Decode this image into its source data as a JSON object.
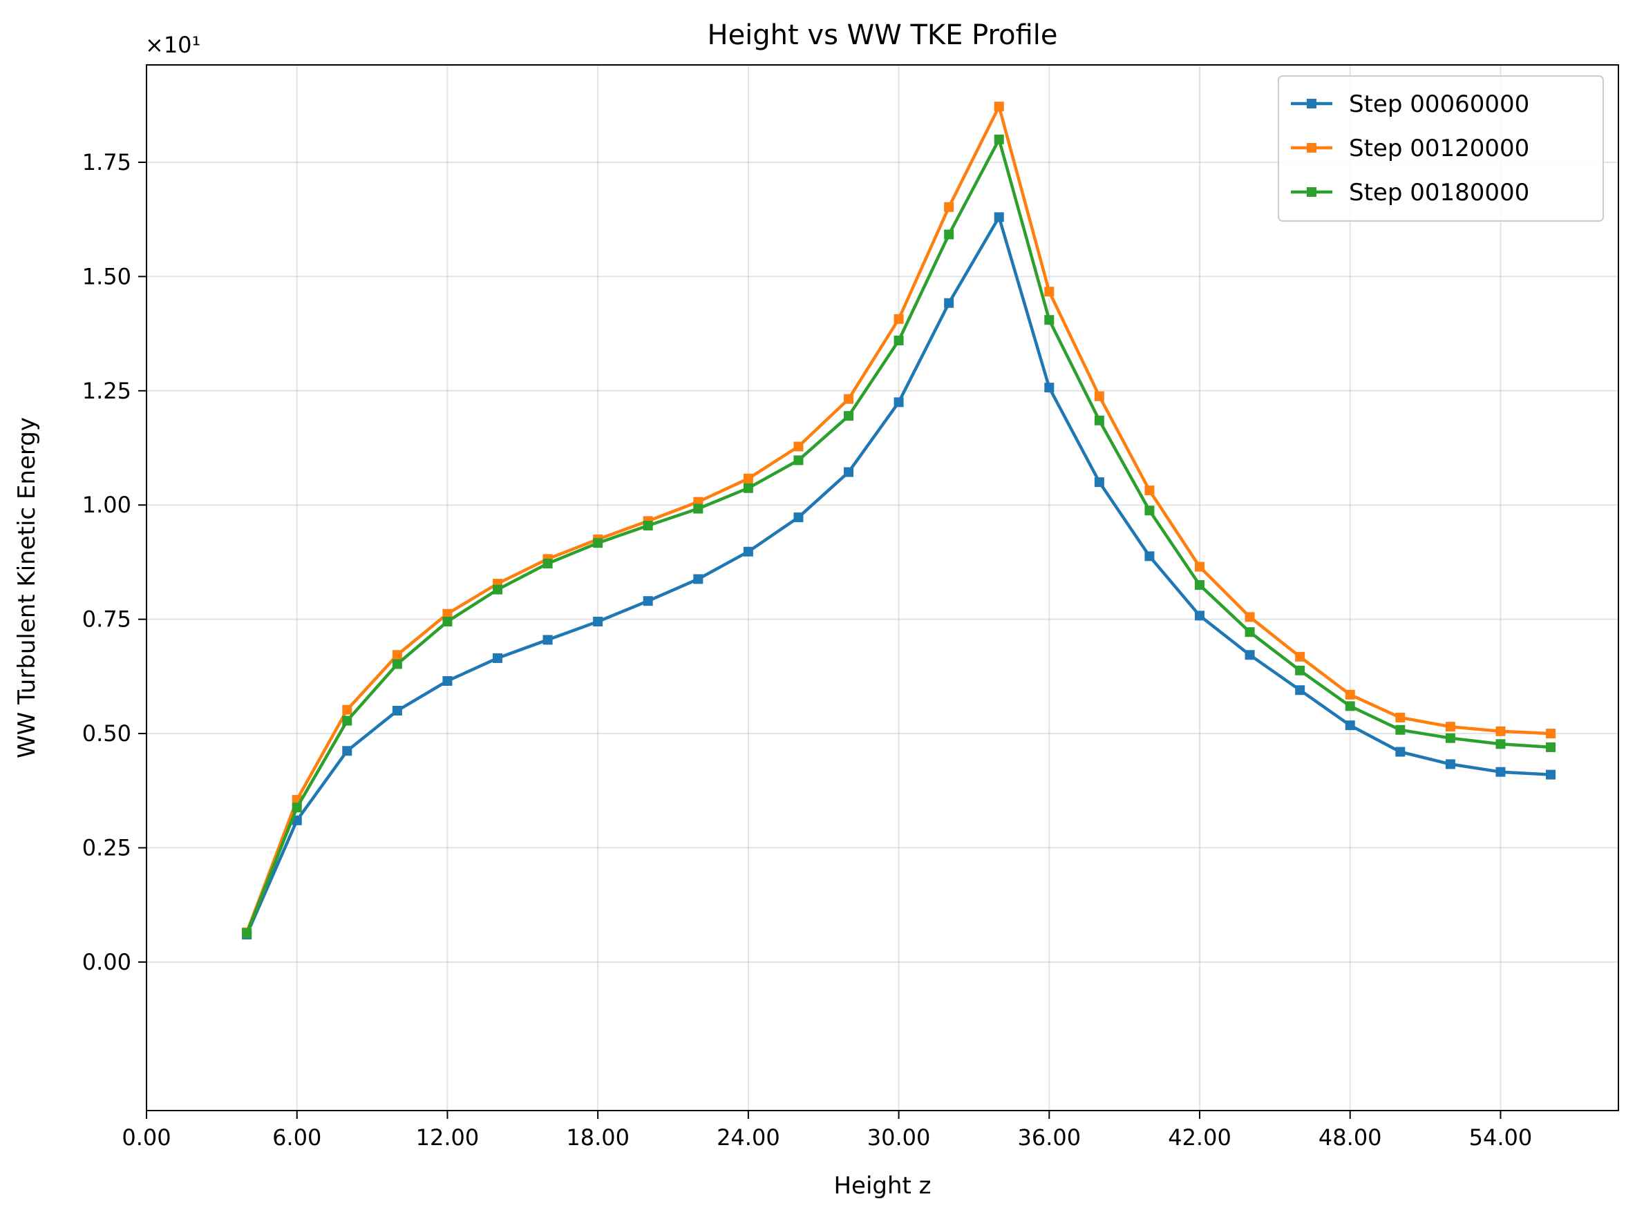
{
  "chart_data": {
    "type": "line",
    "title": "Height vs WW TKE Profile",
    "xlabel": "Height z",
    "ylabel": "WW Turbulent Kinetic Energy",
    "y_multiplier_label": "×10¹",
    "xlim": [
      0,
      58.7
    ],
    "ylim": [
      -0.0325,
      0.1963
    ],
    "x_ticks": [
      0,
      6,
      12,
      18,
      24,
      30,
      36,
      42,
      48,
      54
    ],
    "x_tick_labels": [
      "0.00",
      "6.00",
      "12.00",
      "18.00",
      "24.00",
      "30.00",
      "36.00",
      "42.00",
      "48.00",
      "54.00"
    ],
    "y_ticks": [
      0,
      0.025,
      0.05,
      0.075,
      0.1,
      0.125,
      0.15,
      0.175
    ],
    "y_tick_labels": [
      "0.00",
      "0.25",
      "0.50",
      "0.75",
      "1.00",
      "1.25",
      "1.50",
      "1.75"
    ],
    "grid": true,
    "legend_position": "top-right",
    "x": [
      4,
      6,
      8,
      10,
      12,
      14,
      16,
      18,
      20,
      22,
      24,
      26,
      28,
      30,
      32,
      34,
      36,
      38,
      40,
      42,
      44,
      46,
      48,
      50,
      52,
      54,
      56
    ],
    "series": [
      {
        "name": "Step 00060000",
        "color": "#1f77b4",
        "values": [
          0.006,
          0.031,
          0.0462,
          0.055,
          0.0615,
          0.0665,
          0.0705,
          0.0745,
          0.079,
          0.0838,
          0.0898,
          0.0973,
          0.1072,
          0.1225,
          0.1442,
          0.163,
          0.1257,
          0.105,
          0.0888,
          0.0758,
          0.0672,
          0.0595,
          0.0518,
          0.046,
          0.0433,
          0.0416,
          0.041
        ]
      },
      {
        "name": "Step 00120000",
        "color": "#ff7f0e",
        "values": [
          0.0065,
          0.0355,
          0.0552,
          0.0672,
          0.0762,
          0.0828,
          0.0882,
          0.0925,
          0.0965,
          0.1007,
          0.1058,
          0.1128,
          0.1232,
          0.1407,
          0.1652,
          0.1872,
          0.1467,
          0.1238,
          0.1032,
          0.0865,
          0.0755,
          0.0668,
          0.0585,
          0.0535,
          0.0515,
          0.0505,
          0.05
        ]
      },
      {
        "name": "Step 00180000",
        "color": "#2ca02c",
        "values": [
          0.0063,
          0.0338,
          0.0528,
          0.0652,
          0.0745,
          0.0815,
          0.0872,
          0.0917,
          0.0955,
          0.0992,
          0.1037,
          0.1098,
          0.1195,
          0.136,
          0.1592,
          0.18,
          0.1405,
          0.1185,
          0.0988,
          0.0825,
          0.0722,
          0.0638,
          0.056,
          0.0508,
          0.049,
          0.0477,
          0.047
        ]
      }
    ]
  }
}
